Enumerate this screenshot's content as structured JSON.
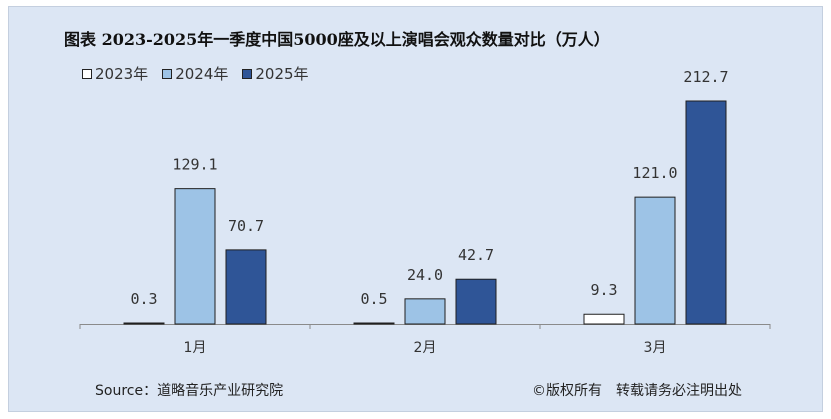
{
  "chart_data": {
    "type": "bar",
    "title": "图表 2023-2025年一季度中国5000座及以上演唱会观众数量对比（万人）",
    "categories": [
      "1月",
      "2月",
      "3月"
    ],
    "series": [
      {
        "name": "2023年",
        "values": [
          0.3,
          0.5,
          9.3
        ],
        "labels": [
          "0.3",
          "0.5",
          "9.3"
        ],
        "color": "#ffffff"
      },
      {
        "name": "2024年",
        "values": [
          129.1,
          24.0,
          121.0
        ],
        "labels": [
          "129.1",
          "24.0",
          "121.0"
        ],
        "color": "#9dc3e6"
      },
      {
        "name": "2025年",
        "values": [
          70.7,
          42.7,
          212.7
        ],
        "labels": [
          "70.7",
          "42.7",
          "212.7"
        ],
        "color": "#2f5597"
      }
    ],
    "ylim": [
      0,
      212.7
    ],
    "grid": false,
    "legend_position": "top-left"
  },
  "footer": {
    "source": "Source：道略音乐产业研究院",
    "copyright": "©版权所有　转载请务必注明出处"
  }
}
